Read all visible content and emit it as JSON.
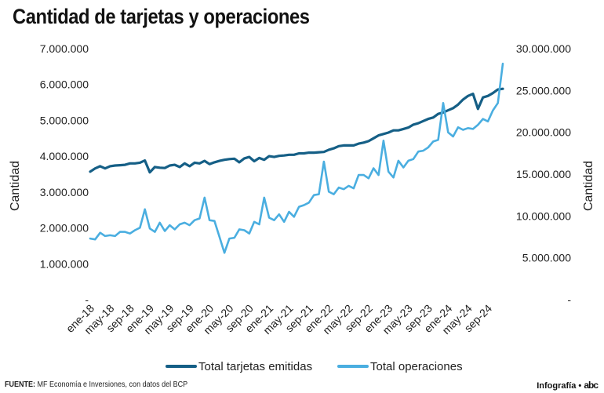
{
  "chart_data": {
    "type": "line",
    "title": "Cantidad de tarjetas y operaciones",
    "x": [
      "ene-18",
      "feb-18",
      "mar-18",
      "abr-18",
      "may-18",
      "jun-18",
      "jul-18",
      "ago-18",
      "sep-18",
      "oct-18",
      "nov-18",
      "dic-18",
      "ene-19",
      "feb-19",
      "mar-19",
      "abr-19",
      "may-19",
      "jun-19",
      "jul-19",
      "ago-19",
      "sep-19",
      "oct-19",
      "nov-19",
      "dic-19",
      "ene-20",
      "feb-20",
      "mar-20",
      "abr-20",
      "may-20",
      "jun-20",
      "jul-20",
      "ago-20",
      "sep-20",
      "oct-20",
      "nov-20",
      "dic-20",
      "ene-21",
      "feb-21",
      "mar-21",
      "abr-21",
      "may-21",
      "jun-21",
      "jul-21",
      "ago-21",
      "sep-21",
      "oct-21",
      "nov-21",
      "dic-21",
      "ene-22",
      "feb-22",
      "mar-22",
      "abr-22",
      "may-22",
      "jun-22",
      "jul-22",
      "ago-22",
      "sep-22",
      "oct-22",
      "nov-22",
      "dic-22",
      "ene-23",
      "feb-23",
      "mar-23",
      "abr-23",
      "may-23",
      "jun-23",
      "jul-23",
      "ago-23",
      "sep-23",
      "oct-23",
      "nov-23",
      "dic-23",
      "ene-24",
      "feb-24",
      "mar-24",
      "abr-24",
      "may-24",
      "jun-24",
      "jul-24",
      "ago-24",
      "sep-24",
      "oct-24",
      "nov-24",
      "dic-24"
    ],
    "x_tick_labels": [
      "ene-18",
      "may-18",
      "sep-18",
      "ene-19",
      "may-19",
      "sep-19",
      "ene-20",
      "may-20",
      "sep-20",
      "ene-21",
      "may-21",
      "sep-21",
      "ene-22",
      "may-22",
      "sep-22",
      "ene-23",
      "may-23",
      "sep-23",
      "ene-24",
      "may-24",
      "sep-24"
    ],
    "ylabel_left": "Cantidad",
    "ylabel_right": "Cantidad",
    "ylim_left": [
      0,
      7000000
    ],
    "ylim_right": [
      0,
      30000000
    ],
    "y_ticks_left": [
      "-",
      "1.000.000",
      "2.000.000",
      "3.000.000",
      "4.000.000",
      "5.000.000",
      "6.000.000",
      "7.000.000"
    ],
    "y_ticks_right": [
      "-",
      "5.000.000",
      "10.000.000",
      "15.000.000",
      "20.000.000",
      "25.000.000",
      "30.000.000"
    ],
    "grid": false,
    "legend_position": "bottom",
    "series": [
      {
        "name": "Total tarjetas emitidas",
        "axis": "left",
        "color": "#155f86",
        "values": [
          3570000,
          3660000,
          3720000,
          3660000,
          3720000,
          3740000,
          3750000,
          3760000,
          3800000,
          3800000,
          3820000,
          3880000,
          3550000,
          3700000,
          3680000,
          3670000,
          3740000,
          3760000,
          3700000,
          3800000,
          3720000,
          3820000,
          3800000,
          3870000,
          3780000,
          3830000,
          3870000,
          3900000,
          3920000,
          3930000,
          3830000,
          3940000,
          3980000,
          3860000,
          3950000,
          3900000,
          4000000,
          3980000,
          4010000,
          4020000,
          4040000,
          4040000,
          4080000,
          4080000,
          4100000,
          4100000,
          4110000,
          4120000,
          4180000,
          4220000,
          4280000,
          4300000,
          4300000,
          4300000,
          4350000,
          4380000,
          4420000,
          4500000,
          4580000,
          4620000,
          4660000,
          4720000,
          4720000,
          4760000,
          4800000,
          4880000,
          4920000,
          4980000,
          5040000,
          5080000,
          5180000,
          5220000,
          5280000,
          5340000,
          5440000,
          5580000,
          5680000,
          5740000,
          5320000,
          5640000,
          5680000,
          5760000,
          5860000,
          5880000
        ]
      },
      {
        "name": "Total operaciones",
        "axis": "right",
        "color": "#4aaee0",
        "values": [
          7300000,
          7200000,
          8000000,
          7600000,
          7700000,
          7600000,
          8100000,
          8100000,
          7900000,
          8300000,
          8600000,
          10800000,
          8500000,
          8100000,
          9200000,
          8200000,
          8900000,
          8400000,
          9000000,
          9200000,
          8900000,
          9500000,
          9700000,
          12200000,
          9500000,
          9400000,
          7500000,
          5600000,
          7300000,
          7400000,
          8400000,
          8300000,
          7900000,
          9300000,
          9000000,
          12200000,
          9800000,
          9500000,
          10200000,
          9300000,
          10500000,
          9900000,
          11100000,
          11300000,
          11600000,
          12500000,
          12600000,
          16500000,
          12900000,
          12600000,
          13400000,
          13200000,
          13600000,
          13300000,
          14900000,
          14900000,
          14500000,
          15700000,
          14900000,
          19000000,
          15300000,
          14600000,
          16600000,
          15800000,
          16600000,
          16800000,
          17700000,
          17800000,
          18200000,
          18900000,
          19100000,
          23500000,
          20000000,
          19500000,
          20600000,
          20300000,
          20500000,
          20400000,
          20900000,
          21600000,
          21300000,
          22600000,
          23500000,
          28200000
        ]
      }
    ]
  },
  "footer": {
    "source_label": "FUENTE:",
    "source_text": " MF Economía e Inversiones, con datos del BCP",
    "credit": "Infografía •",
    "logo_text": "abc"
  }
}
